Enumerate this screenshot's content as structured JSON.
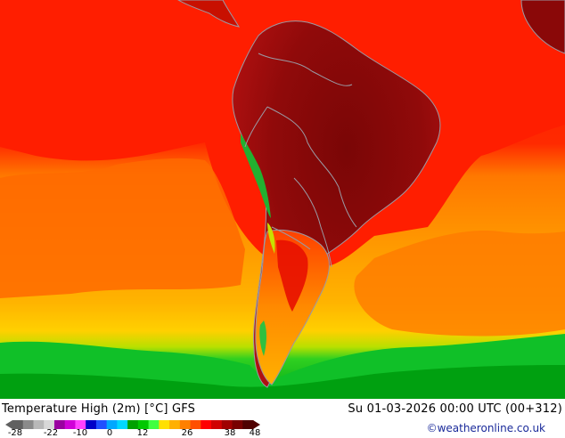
{
  "map": {
    "title": "Temperature High (2m) [°C] GFS",
    "valid_time": "Su 01-03-2026 00:00 UTC (00+312)",
    "credit": "©weatheronline.co.uk",
    "region": "South America",
    "colors": {
      "ocean_north": "#ff1a00",
      "ocean_mid": "#ff7a00",
      "ocean_south": "#ffb000",
      "amazon": "#8a0808",
      "andes_cold": "#22b030",
      "southern_ocean": "#00c020",
      "borders": "#9a9aa4"
    }
  },
  "legend": {
    "tick_labels": [
      "-28",
      "-22",
      "-10",
      "0",
      "12",
      "26",
      "38",
      "48"
    ],
    "colors": [
      "#606060",
      "#8a8a8a",
      "#b8b8b8",
      "#d8d8d8",
      "#9a00a0",
      "#d000d8",
      "#ff40ff",
      "#0000c8",
      "#2050ff",
      "#00a8ff",
      "#00d8ff",
      "#00a000",
      "#00c800",
      "#40ff40",
      "#ffe000",
      "#ffb000",
      "#ff8000",
      "#ff5000",
      "#ff0000",
      "#d00000",
      "#a00000",
      "#780000",
      "#500000"
    ]
  }
}
